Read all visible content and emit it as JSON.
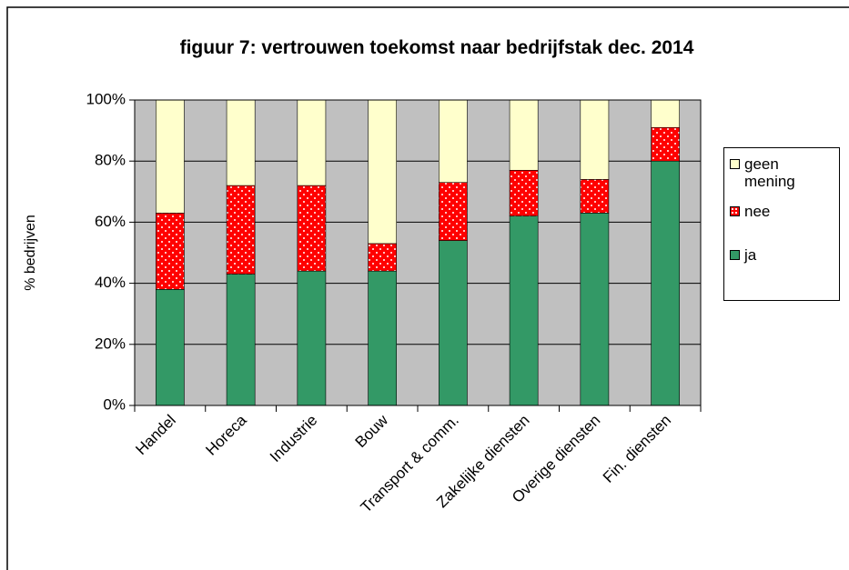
{
  "chart_data": {
    "type": "stacked_bar",
    "title": "figuur 7: vertrouwen toekomst naar bedrijfstak dec. 2014",
    "y_label": "% bedrijven",
    "categories": [
      "Handel",
      "Horeca",
      "Industrie",
      "Bouw",
      "Transport & comm.",
      "Zakelijke diensten",
      "Overige diensten",
      "Fin. diensten"
    ],
    "series": [
      {
        "name": "ja",
        "color": "#339966",
        "values": [
          38,
          43,
          44,
          44,
          54,
          62,
          63,
          80
        ]
      },
      {
        "name": "nee",
        "color": "#ff0000",
        "values": [
          25,
          29,
          28,
          9,
          19,
          15,
          11,
          11
        ]
      },
      {
        "name": "geen mening",
        "color": "#ffffcc",
        "values": [
          37,
          28,
          28,
          47,
          27,
          23,
          26,
          9
        ]
      }
    ],
    "ylim": [
      0,
      100
    ],
    "yticks": [
      {
        "value": 0,
        "label": "0%"
      },
      {
        "value": 20,
        "label": "20%"
      },
      {
        "value": 40,
        "label": "40%"
      },
      {
        "value": 60,
        "label": "60%"
      },
      {
        "value": 80,
        "label": "80%"
      },
      {
        "value": 100,
        "label": "100%"
      }
    ],
    "grid": true,
    "legend": "right"
  }
}
